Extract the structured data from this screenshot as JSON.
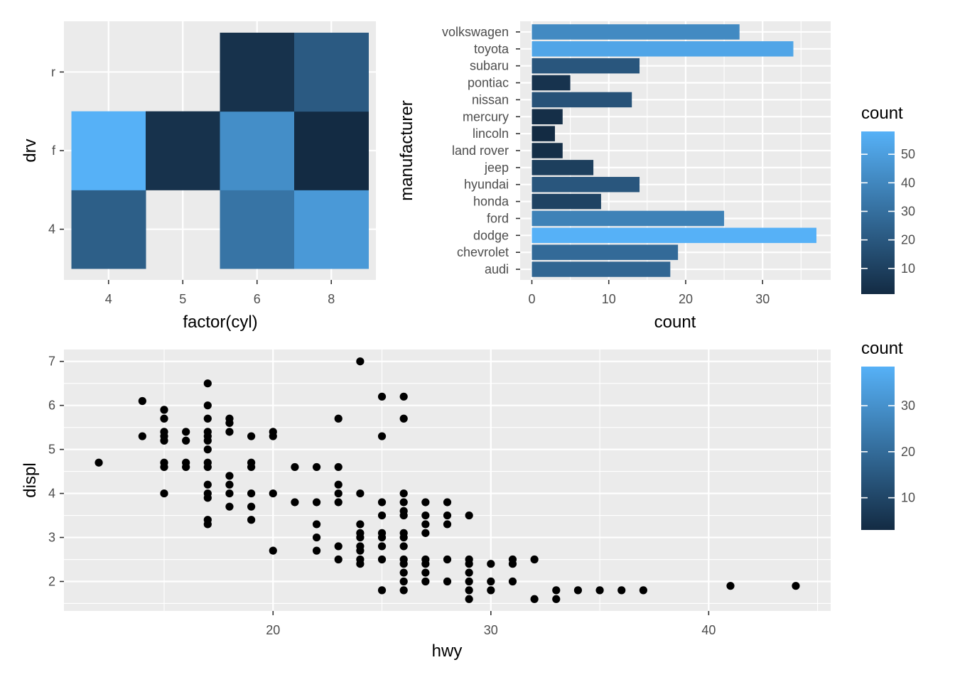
{
  "colors": {
    "panel_bg": "#ebebeb",
    "grid_major": "#ffffff",
    "grad_low": "#132b43",
    "grad_high": "#56b1f7",
    "point": "#000000"
  },
  "chart_data": [
    {
      "id": "heatmap",
      "type": "heatmap",
      "title": "",
      "xlabel": "factor(cyl)",
      "ylabel": "drv",
      "x_categories": [
        "4",
        "5",
        "6",
        "8"
      ],
      "y_categories": [
        "4",
        "f",
        "r"
      ],
      "cells": [
        {
          "x": "4",
          "y": "4",
          "count": 23
        },
        {
          "x": "6",
          "y": "4",
          "count": 32
        },
        {
          "x": "8",
          "y": "4",
          "count": 48
        },
        {
          "x": "4",
          "y": "f",
          "count": 58
        },
        {
          "x": "5",
          "y": "f",
          "count": 4
        },
        {
          "x": "6",
          "y": "f",
          "count": 43
        },
        {
          "x": "8",
          "y": "f",
          "count": 1
        },
        {
          "x": "6",
          "y": "r",
          "count": 4
        },
        {
          "x": "8",
          "y": "r",
          "count": 21
        }
      ],
      "fill_range": [
        1,
        58
      ],
      "legend": {
        "title": "count",
        "breaks": [
          10,
          20,
          30,
          40,
          50
        ]
      }
    },
    {
      "id": "bar",
      "type": "bar",
      "orientation": "horizontal",
      "title": "",
      "xlabel": "count",
      "ylabel": "manufacturer",
      "categories": [
        "audi",
        "chevrolet",
        "dodge",
        "ford",
        "honda",
        "hyundai",
        "jeep",
        "land rover",
        "lincoln",
        "mercury",
        "nissan",
        "pontiac",
        "subaru",
        "toyota",
        "volkswagen"
      ],
      "values": [
        18,
        19,
        37,
        25,
        9,
        14,
        8,
        4,
        3,
        4,
        13,
        5,
        14,
        34,
        27
      ],
      "xlim": [
        0,
        38.85
      ],
      "x_ticks": [
        0,
        10,
        20,
        30
      ],
      "fill_range": [
        3,
        37
      ],
      "legend": {
        "title": "count",
        "breaks": [
          10,
          20,
          30
        ]
      }
    },
    {
      "id": "scatter",
      "type": "scatter",
      "title": "",
      "xlabel": "hwy",
      "ylabel": "displ",
      "xlim": [
        10.4,
        45.6
      ],
      "ylim": [
        1.33,
        7.27
      ],
      "x_ticks": [
        20,
        30,
        40
      ],
      "y_ticks": [
        2,
        3,
        4,
        5,
        6,
        7
      ],
      "points": [
        [
          12,
          4.7
        ],
        [
          14,
          6.1
        ],
        [
          14,
          5.3
        ],
        [
          15,
          5.9
        ],
        [
          15,
          5.7
        ],
        [
          15,
          5.4
        ],
        [
          15,
          5.3
        ],
        [
          15,
          5.2
        ],
        [
          15,
          4.7
        ],
        [
          15,
          4.6
        ],
        [
          15,
          4.0
        ],
        [
          16,
          5.4
        ],
        [
          16,
          5.2
        ],
        [
          16,
          4.7
        ],
        [
          16,
          4.6
        ],
        [
          17,
          6.5
        ],
        [
          17,
          6.0
        ],
        [
          17,
          5.7
        ],
        [
          17,
          5.4
        ],
        [
          17,
          5.3
        ],
        [
          17,
          5.2
        ],
        [
          17,
          5.0
        ],
        [
          17,
          4.7
        ],
        [
          17,
          4.6
        ],
        [
          17,
          4.2
        ],
        [
          17,
          4.0
        ],
        [
          17,
          3.9
        ],
        [
          17,
          3.4
        ],
        [
          17,
          3.3
        ],
        [
          18,
          5.7
        ],
        [
          18,
          5.6
        ],
        [
          18,
          5.4
        ],
        [
          18,
          4.4
        ],
        [
          18,
          4.2
        ],
        [
          18,
          4.0
        ],
        [
          18,
          3.7
        ],
        [
          19,
          5.3
        ],
        [
          19,
          4.7
        ],
        [
          19,
          4.6
        ],
        [
          19,
          4.0
        ],
        [
          19,
          3.7
        ],
        [
          19,
          3.4
        ],
        [
          20,
          5.4
        ],
        [
          20,
          5.3
        ],
        [
          20,
          4.0
        ],
        [
          20,
          2.7
        ],
        [
          21,
          4.6
        ],
        [
          21,
          3.8
        ],
        [
          22,
          4.6
        ],
        [
          22,
          3.8
        ],
        [
          22,
          3.3
        ],
        [
          22,
          3.0
        ],
        [
          22,
          2.7
        ],
        [
          23,
          5.7
        ],
        [
          23,
          4.6
        ],
        [
          23,
          4.2
        ],
        [
          23,
          4.0
        ],
        [
          23,
          3.8
        ],
        [
          23,
          2.8
        ],
        [
          23,
          2.5
        ],
        [
          24,
          7.0
        ],
        [
          24,
          4.0
        ],
        [
          24,
          3.3
        ],
        [
          24,
          3.1
        ],
        [
          24,
          3.0
        ],
        [
          24,
          2.8
        ],
        [
          24,
          2.7
        ],
        [
          24,
          2.5
        ],
        [
          24,
          2.4
        ],
        [
          25,
          6.2
        ],
        [
          25,
          5.3
        ],
        [
          25,
          3.8
        ],
        [
          25,
          3.5
        ],
        [
          25,
          3.1
        ],
        [
          25,
          3.0
        ],
        [
          25,
          2.8
        ],
        [
          25,
          2.5
        ],
        [
          25,
          1.8
        ],
        [
          26,
          6.2
        ],
        [
          26,
          5.7
        ],
        [
          26,
          4.0
        ],
        [
          26,
          3.8
        ],
        [
          26,
          3.6
        ],
        [
          26,
          3.5
        ],
        [
          26,
          3.1
        ],
        [
          26,
          3.0
        ],
        [
          26,
          2.8
        ],
        [
          26,
          2.5
        ],
        [
          26,
          2.4
        ],
        [
          26,
          2.2
        ],
        [
          26,
          2.0
        ],
        [
          26,
          1.8
        ],
        [
          27,
          3.8
        ],
        [
          27,
          3.5
        ],
        [
          27,
          3.3
        ],
        [
          27,
          3.1
        ],
        [
          27,
          2.5
        ],
        [
          27,
          2.4
        ],
        [
          27,
          2.2
        ],
        [
          27,
          2.0
        ],
        [
          28,
          3.8
        ],
        [
          28,
          3.5
        ],
        [
          28,
          3.3
        ],
        [
          28,
          2.5
        ],
        [
          28,
          2.0
        ],
        [
          29,
          3.5
        ],
        [
          29,
          2.5
        ],
        [
          29,
          2.4
        ],
        [
          29,
          2.2
        ],
        [
          29,
          2.0
        ],
        [
          29,
          1.8
        ],
        [
          29,
          1.6
        ],
        [
          30,
          2.4
        ],
        [
          30,
          2.0
        ],
        [
          30,
          1.8
        ],
        [
          31,
          2.5
        ],
        [
          31,
          2.4
        ],
        [
          31,
          2.0
        ],
        [
          32,
          2.5
        ],
        [
          32,
          1.6
        ],
        [
          33,
          1.8
        ],
        [
          33,
          1.6
        ],
        [
          34,
          1.8
        ],
        [
          35,
          1.8
        ],
        [
          36,
          1.8
        ],
        [
          37,
          1.8
        ],
        [
          41,
          1.9
        ],
        [
          44,
          1.9
        ]
      ],
      "legend": {
        "title": "count",
        "breaks": [
          10,
          20,
          30
        ]
      }
    }
  ]
}
